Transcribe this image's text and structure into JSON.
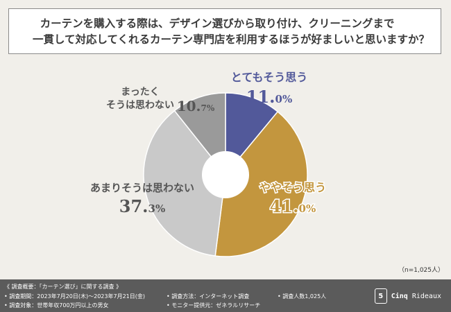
{
  "question": {
    "line1": "カーテンを購入する際は、デザイン選びから取り付け、クリーニングまで",
    "line2": "一貫して対応してくれるカーテン専門店を利用するほうが好ましいと思いますか？"
  },
  "sample_note": "（n=1,025人）",
  "footer": {
    "heading": "《 調査概要：「カーテン選び」に関する調査 》",
    "period": "• 調査期間：2023年7月20日(木)～2023年7月21日(金)",
    "method": "• 調査方法：インターネット調査",
    "count": "• 調査人数1,025人",
    "target": "• 調査対象：世帯年収700万円以上の男女",
    "provider": "• モニター提供元：ゼネラルリサーチ",
    "brand_mark": "5",
    "brand_name_bold": "Cinq",
    "brand_name": "Rideaux"
  },
  "chart_data": {
    "type": "pie",
    "title": "",
    "donut": true,
    "slices": [
      {
        "label": "とても思う",
        "label_lines": [
          "とてもそう思う"
        ],
        "value": 11.0,
        "value_main": "11.",
        "value_small": "0%",
        "color": "#52599a",
        "label_color": "#52599a"
      },
      {
        "label": "ややそう思う",
        "label_lines": [
          "ややそう思う"
        ],
        "value": 41.0,
        "value_main": "41.",
        "value_small": "0%",
        "color": "#c3963e",
        "label_color": "#c3963e"
      },
      {
        "label": "あまりそうは思わない",
        "label_lines": [
          "あまりそうは思わない"
        ],
        "value": 37.3,
        "value_main": "37.",
        "value_small": "3%",
        "color": "#c9c9c9",
        "label_color": "#555555"
      },
      {
        "label": "まったくそうは思わない",
        "label_lines": [
          "まったく",
          "そうは思わない"
        ],
        "value": 10.7,
        "value_main": "10.",
        "value_small": "7%",
        "color": "#9a9a9a",
        "label_color": "#555555"
      }
    ]
  }
}
